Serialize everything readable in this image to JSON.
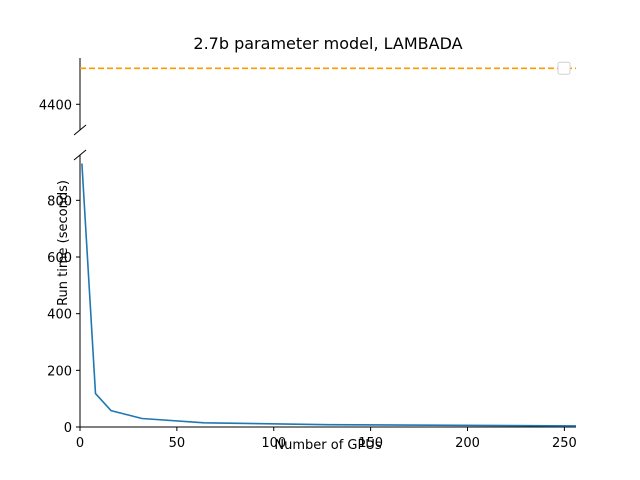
{
  "chart_data": {
    "type": "line",
    "title": "2.7b parameter model, LAMBADA",
    "xlabel": "Number of GPUs",
    "ylabel": "Run time (seconds)",
    "xlim": [
      0,
      256
    ],
    "broken_y_axis": true,
    "top_panel": {
      "ylim": [
        4350,
        4490
      ],
      "yticks": [
        4400
      ]
    },
    "bottom_panel": {
      "ylim": [
        0,
        960
      ],
      "yticks": [
        0,
        200,
        400,
        600,
        800
      ]
    },
    "xticks": [
      0,
      50,
      100,
      150,
      200,
      250
    ],
    "series": [
      {
        "color": "#1f77b4",
        "style": "solid",
        "x": [
          1,
          8,
          16,
          32,
          64,
          128,
          256
        ],
        "y": [
          930,
          118,
          58,
          30,
          15,
          8,
          4
        ]
      },
      {
        "color": "#ff9900",
        "style": "dashed",
        "x": [
          0,
          256
        ],
        "y": [
          4470,
          4470
        ]
      }
    ],
    "legend": {
      "position": "top-right",
      "entries": [
        ""
      ]
    }
  }
}
